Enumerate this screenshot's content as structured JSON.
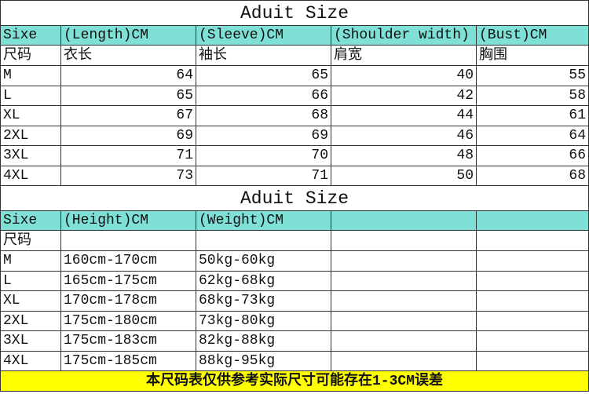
{
  "colors": {
    "header_bg": "#7fe0d6",
    "footer_bg": "#ffff00"
  },
  "table1": {
    "title": "Aduit Size",
    "headers": [
      "Sixe",
      "(Length)CM",
      "(Sleeve)CM",
      "(Shoulder width)",
      "(Bust)CM"
    ],
    "headers_cn": [
      "尺码",
      "衣长",
      "袖长",
      "肩宽",
      "胸围"
    ],
    "rows": [
      [
        "M",
        "64",
        "65",
        "40",
        "55"
      ],
      [
        "L",
        "65",
        "66",
        "42",
        "58"
      ],
      [
        "XL",
        "67",
        "68",
        "44",
        "61"
      ],
      [
        "2XL",
        "69",
        "69",
        "46",
        "64"
      ],
      [
        "3XL",
        "71",
        "70",
        "48",
        "66"
      ],
      [
        "4XL",
        "73",
        "71",
        "50",
        "68"
      ]
    ]
  },
  "table2": {
    "title": "Aduit Size",
    "headers": [
      "Sixe",
      "(Height)CM",
      "(Weight)CM",
      "",
      ""
    ],
    "headers_cn": [
      "尺码",
      "",
      "",
      "",
      ""
    ],
    "rows": [
      [
        "M",
        "160cm-170cm",
        "50kg-60kg",
        "",
        ""
      ],
      [
        "L",
        "165cm-175cm",
        "62kg-68kg",
        "",
        ""
      ],
      [
        "XL",
        "170cm-178cm",
        "68kg-73kg",
        "",
        ""
      ],
      [
        "2XL",
        "175cm-180cm",
        "73kg-80kg",
        "",
        ""
      ],
      [
        "3XL",
        "175cm-183cm",
        "82kg-88kg",
        "",
        ""
      ],
      [
        "4XL",
        "175cm-185cm",
        "88kg-95kg",
        "",
        ""
      ]
    ]
  },
  "footer": "本尺码表仅供参考实际尺寸可能存在1-3CM误差"
}
